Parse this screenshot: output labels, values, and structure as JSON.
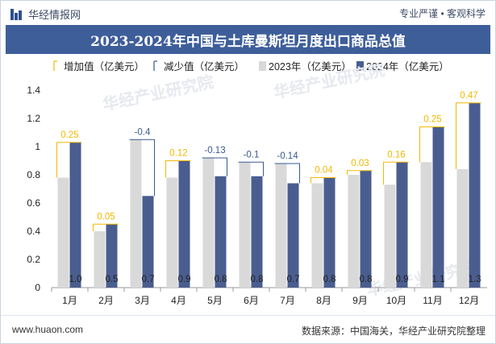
{
  "header": {
    "brand": "华经情报网",
    "tagline": "专业严谨 • 客观科学"
  },
  "footer": {
    "site": "www.huaon.com",
    "source": "数据来源：中国海关，华经产业研究院整理"
  },
  "watermark": "华经产业研究院",
  "colors": {
    "bar2023": "#d9d9d9",
    "bar2024": "#4a5d8f",
    "increase": "#f2b800",
    "decrease": "#3a5a8c",
    "titlebar": "#3e5e9a"
  },
  "chart_data": {
    "type": "bar",
    "title": "2023-2024年中国与土库曼斯坦月度出口商品总值",
    "categories": [
      "1月",
      "2月",
      "3月",
      "4月",
      "5月",
      "6月",
      "7月",
      "8月",
      "9月",
      "10月",
      "11月",
      "12月"
    ],
    "series": [
      {
        "name": "2023年（亿美元）",
        "values": [
          0.78,
          0.4,
          1.05,
          0.78,
          0.92,
          0.89,
          0.88,
          0.74,
          0.8,
          0.73,
          0.89,
          0.84
        ]
      },
      {
        "name": "2024年（亿美元）",
        "values": [
          1.03,
          0.45,
          0.65,
          0.9,
          0.79,
          0.79,
          0.74,
          0.78,
          0.83,
          0.89,
          1.14,
          1.31
        ]
      }
    ],
    "change": {
      "increase_name": "增加值（亿美元）",
      "decrease_name": "减少值（亿美元）",
      "labels": [
        "0.25",
        "0.05",
        "-0.4",
        "0.12",
        "-0.13",
        "-0.1",
        "-0.14",
        "0.04",
        "0.03",
        "0.16",
        "0.25",
        "0.47"
      ]
    },
    "bar_labels_2024": [
      "1.0",
      "0.5",
      "0.7",
      "0.9",
      "0.8",
      "0.8",
      "0.7",
      "0.8",
      "0.8",
      "0.9",
      "1.1",
      "1.3"
    ],
    "ylim": [
      0,
      1.4
    ],
    "yticks": [
      "0",
      "0.2",
      "0.4",
      "0.6",
      "0.8",
      "1",
      "1.2",
      "1.4"
    ],
    "legend_position": "top"
  }
}
